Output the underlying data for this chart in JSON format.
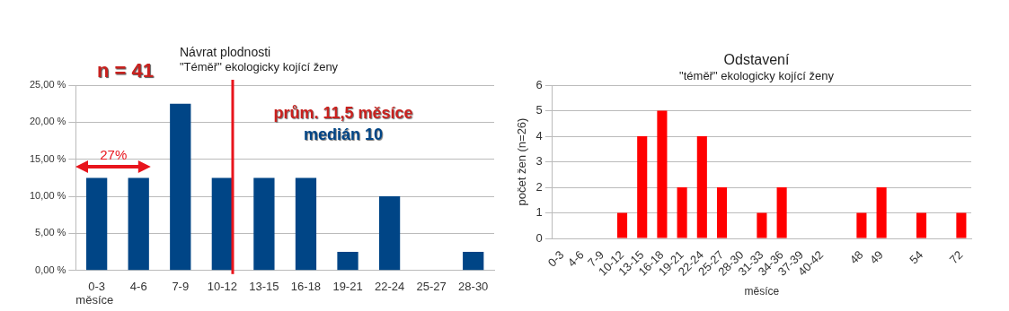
{
  "chart_data": [
    {
      "type": "bar",
      "title": "Návrat plodnosti",
      "subtitle": "\"Téměř\" ekologicky kojící ženy",
      "xlabel": "měsíce",
      "categories": [
        "0-3",
        "4-6",
        "7-9",
        "10-12",
        "13-15",
        "16-18",
        "19-21",
        "22-24",
        "25-27",
        "28-30"
      ],
      "values": [
        12.5,
        12.5,
        22.5,
        12.5,
        12.5,
        12.5,
        2.5,
        10,
        0,
        2.5
      ],
      "color": "#004586",
      "ylim": [
        0,
        25
      ],
      "yticks": [
        {
          "value": 0,
          "label": "0,00 %"
        },
        {
          "value": 5,
          "label": "5,00 %"
        },
        {
          "value": 10,
          "label": "10,00 %"
        },
        {
          "value": 15,
          "label": "15,00 %"
        },
        {
          "value": 20,
          "label": "20,00 %"
        },
        {
          "value": 25,
          "label": "25,00 %"
        }
      ],
      "grid": "y",
      "legend": false,
      "ref_lines": [
        {
          "axis": "x",
          "value": "10-12",
          "color": "#e8141c"
        }
      ],
      "annotations": [
        "n = 41",
        "27%",
        "prům. 11,5 měsíce",
        "medián 10"
      ]
    },
    {
      "type": "bar",
      "title": "Odstavení",
      "subtitle": "\"téměř\" ekologicky kojící ženy",
      "xlabel": "měsíce",
      "ylabel": "počet žen (n=26)",
      "categories": [
        "0-3",
        "4-6",
        "7-9",
        "10-12",
        "13-15",
        "16-18",
        "19-21",
        "22-24",
        "25-27",
        "28-30",
        "31-33",
        "34-36",
        "37-39",
        "40-42",
        null,
        "48",
        "49",
        null,
        "54",
        null,
        "72"
      ],
      "values": [
        0,
        0,
        0,
        1,
        4,
        5,
        2,
        4,
        2,
        0,
        1,
        2,
        0,
        0,
        0,
        1,
        2,
        0,
        1,
        0,
        1
      ],
      "color": "#ff0000",
      "ylim": [
        0,
        6
      ],
      "yticks": [
        0,
        1,
        2,
        3,
        4,
        5,
        6
      ],
      "grid": "y",
      "legend": false
    }
  ]
}
